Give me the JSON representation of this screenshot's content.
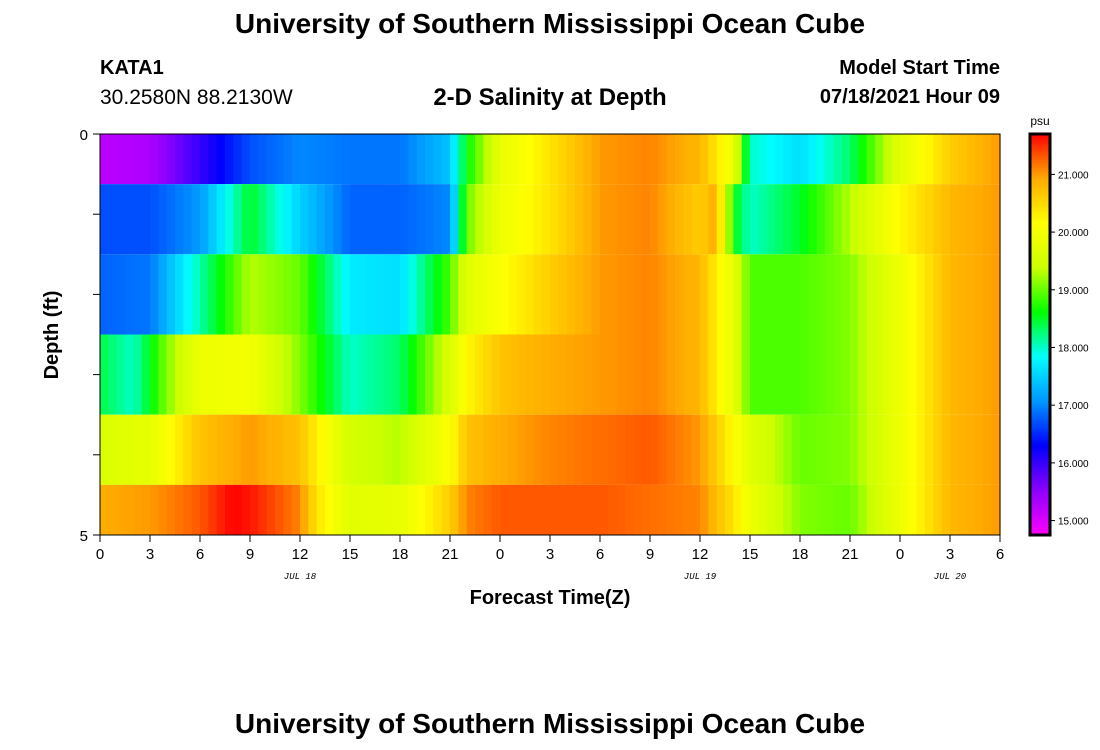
{
  "header": {
    "title": "University of Southern Mississippi Ocean Cube",
    "station": "KATA1",
    "coords": "30.2580N  88.2130W",
    "plot_title": "2-D Salinity at Depth",
    "model_start_label": "Model Start Time",
    "model_start_value": "07/18/2021 Hour 09"
  },
  "footer": {
    "title": "University of Southern Mississippi Ocean Cube"
  },
  "chart_data": {
    "type": "heatmap",
    "title": "2-D Salinity at Depth",
    "xlabel": "Forecast Time(Z)",
    "ylabel": "Depth (ft)",
    "x_start": "07/18/2021 00Z",
    "x_hours": [
      0,
      3,
      6,
      9,
      12,
      15,
      18,
      21,
      24,
      27,
      30,
      33,
      36,
      39,
      42,
      45,
      48,
      51,
      54
    ],
    "x_ticks": [
      "0",
      "3",
      "6",
      "9",
      "12",
      "15",
      "18",
      "21",
      "0",
      "3",
      "6",
      "9",
      "12",
      "15",
      "18",
      "21",
      "0",
      "3",
      "6"
    ],
    "date_labels": [
      {
        "hour": 12,
        "label": "JUL 18"
      },
      {
        "hour": 36,
        "label": "JUL 19"
      },
      {
        "hour": 51,
        "label": "JUL 20"
      }
    ],
    "ylim": [
      0,
      5
    ],
    "y_ticks": [
      "0",
      "5"
    ],
    "depth_layers": [
      0.25,
      1,
      2,
      3,
      4,
      4.75
    ],
    "colorbar": {
      "unit": "psu",
      "range": [
        14.75,
        21.7
      ],
      "ticks": [
        "15.000",
        "16.000",
        "17.000",
        "18.000",
        "19.000",
        "20.000",
        "21.000"
      ],
      "colors": [
        "#ff00ff",
        "#8c00ff",
        "#0000ff",
        "#0096ff",
        "#00ffff",
        "#00ff00",
        "#ccff00",
        "#ffff00",
        "#ffaa00",
        "#ff0000"
      ]
    },
    "series": [
      {
        "depth": 0.25,
        "hours": [
          0,
          3,
          6,
          9,
          12,
          15,
          18,
          21,
          22,
          24,
          27,
          30,
          33,
          36,
          38,
          39,
          42,
          45,
          48,
          51,
          54
        ],
        "values": [
          15.2,
          15.3,
          16.0,
          16.7,
          17.0,
          16.9,
          16.9,
          17.4,
          18.6,
          19.8,
          20.4,
          21.0,
          21.1,
          20.8,
          19.9,
          18.0,
          17.6,
          18.3,
          19.7,
          20.6,
          21.0
        ]
      },
      {
        "depth": 1,
        "hours": [
          0,
          3,
          6,
          9,
          12,
          15,
          18,
          21,
          22,
          24,
          27,
          30,
          33,
          36,
          37,
          38,
          39,
          42,
          45,
          48,
          51,
          54
        ],
        "values": [
          16.7,
          16.7,
          17.1,
          18.5,
          17.5,
          16.8,
          16.8,
          17.0,
          19.0,
          19.9,
          20.4,
          21.0,
          21.1,
          20.6,
          20.9,
          18.6,
          18.0,
          18.5,
          19.3,
          20.2,
          20.8,
          21.0
        ]
      },
      {
        "depth": 2,
        "hours": [
          0,
          3,
          6,
          9,
          12,
          15,
          18,
          21,
          22,
          24,
          27,
          30,
          33,
          36,
          38,
          39,
          42,
          45,
          48,
          51,
          54
        ],
        "values": [
          16.8,
          16.9,
          18.1,
          19.3,
          19.0,
          17.7,
          17.6,
          18.9,
          19.7,
          20.1,
          20.6,
          21.0,
          21.1,
          20.8,
          19.8,
          18.9,
          18.9,
          19.1,
          19.9,
          20.8,
          21.0
        ]
      },
      {
        "depth": 3,
        "hours": [
          0,
          2,
          4,
          6,
          9,
          12,
          15,
          18,
          21,
          22,
          24,
          27,
          30,
          33,
          36,
          38,
          39,
          42,
          45,
          48,
          51,
          54
        ],
        "values": [
          18.4,
          18.0,
          19.1,
          19.9,
          20.0,
          19.1,
          18.0,
          18.3,
          19.6,
          20.2,
          20.7,
          20.9,
          21.0,
          21.1,
          20.8,
          19.8,
          18.9,
          18.9,
          19.1,
          19.9,
          20.8,
          21.0
        ]
      },
      {
        "depth": 4,
        "hours": [
          0,
          3,
          6,
          9,
          12,
          15,
          18,
          21,
          22,
          24,
          27,
          30,
          33,
          36,
          37,
          39,
          42,
          45,
          48,
          51,
          54
        ],
        "values": [
          19.6,
          19.8,
          20.7,
          21.0,
          20.7,
          19.5,
          19.3,
          20.1,
          20.7,
          20.9,
          21.1,
          21.2,
          21.3,
          21.0,
          20.6,
          19.7,
          19.0,
          19.1,
          19.9,
          20.8,
          21.0
        ]
      },
      {
        "depth": 4.75,
        "hours": [
          0,
          3,
          6,
          8,
          9,
          12,
          13,
          15,
          18,
          21,
          22,
          24,
          27,
          30,
          33,
          36,
          38,
          39,
          42,
          45,
          48,
          51,
          54
        ],
        "values": [
          20.9,
          21.0,
          21.3,
          21.7,
          21.6,
          21.1,
          20.4,
          19.7,
          19.8,
          20.6,
          21.1,
          21.3,
          21.3,
          21.3,
          21.2,
          21.1,
          20.4,
          19.9,
          19.1,
          19.0,
          19.9,
          20.8,
          21.0
        ]
      }
    ]
  }
}
